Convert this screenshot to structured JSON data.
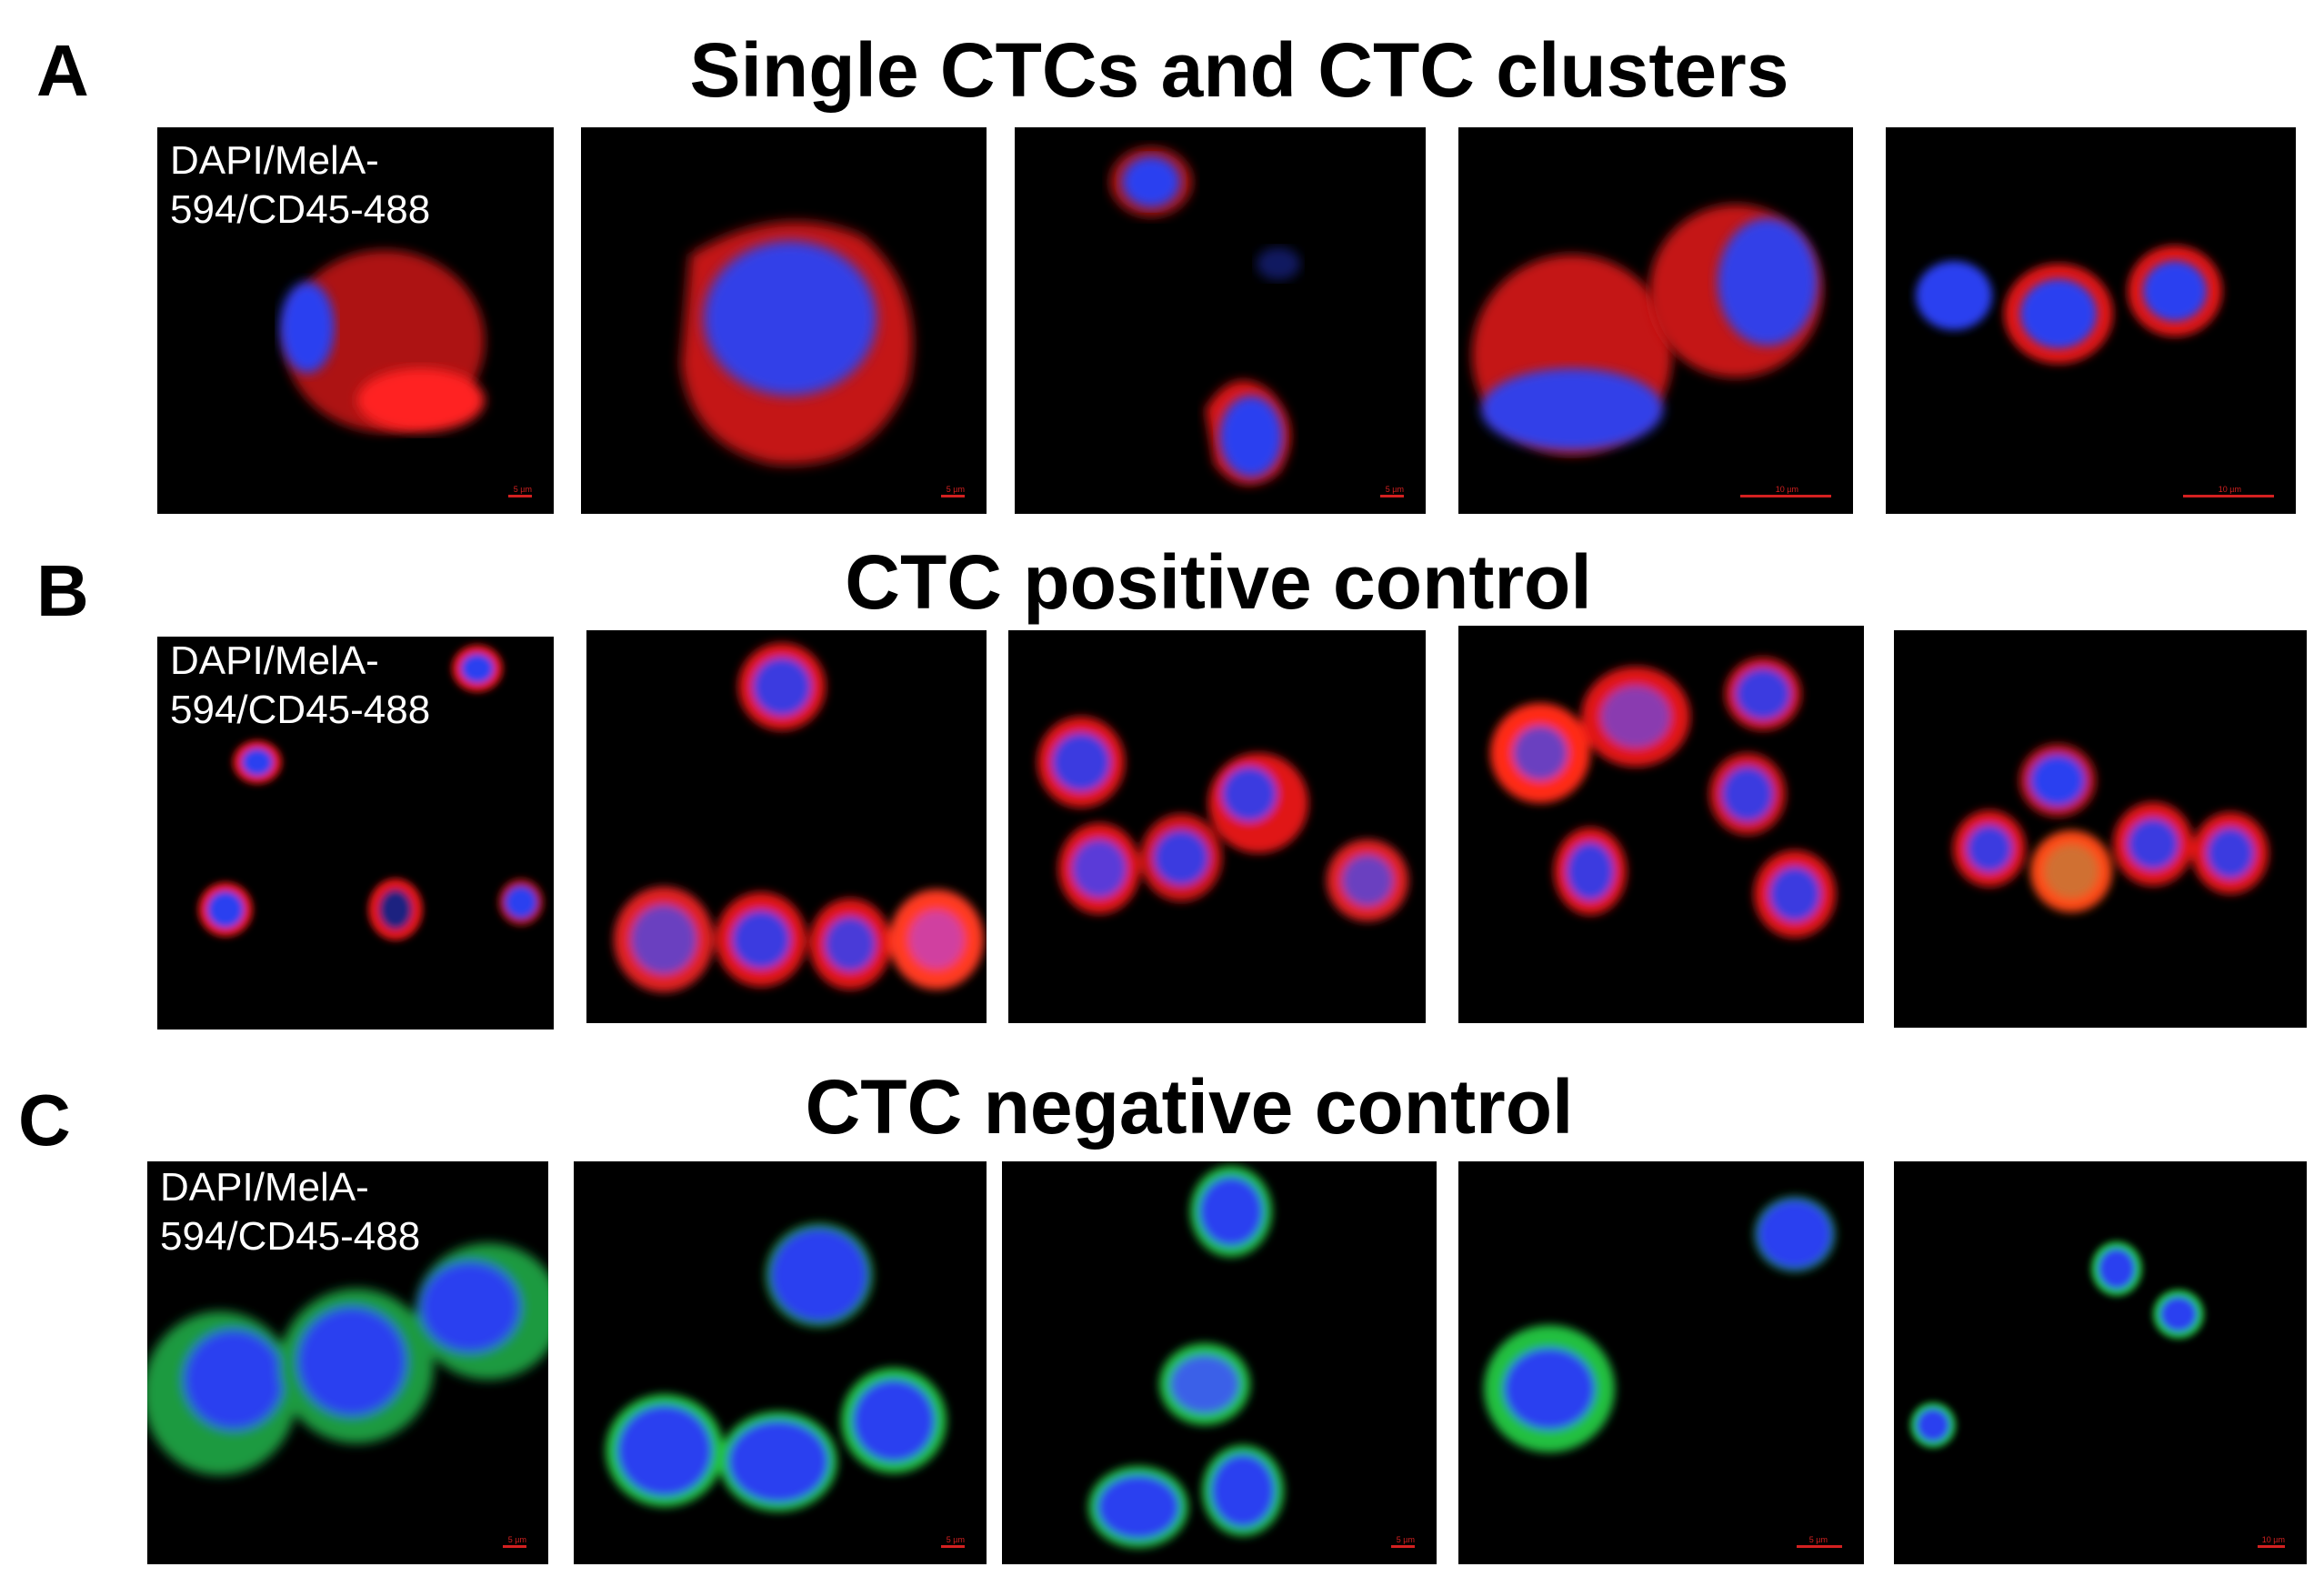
{
  "panels": [
    {
      "letter": "A",
      "title": "Single CTCs and CTC clusters",
      "stain_label": "DAPI/MelA-594/CD45-488",
      "stain_line1": "DAPI/MelA-",
      "stain_line2": "594/CD45-488"
    },
    {
      "letter": "B",
      "title": "CTC positive control",
      "stain_label": "DAPI/MelA-594/CD45-488",
      "stain_line1": "DAPI/MelA-",
      "stain_line2": "594/CD45-488"
    },
    {
      "letter": "C",
      "title": "CTC negative control",
      "stain_label": "DAPI/MelA-594/CD45-488",
      "stain_line1": "DAPI/MelA-",
      "stain_line2": "594/CD45-488"
    }
  ],
  "colors": {
    "background": "#ffffff",
    "tile": "#000000",
    "dapi": "#2b3ff0",
    "mela": "#e01818",
    "cd45": "#22c040",
    "scale_bar": "#d42020",
    "label": "#ffffff"
  },
  "scale_labels": {
    "a": [
      "5 µm",
      "5 µm",
      "5 µm",
      "10 µm",
      "10 µm"
    ],
    "c": [
      "5 µm",
      "5 µm",
      "5 µm",
      "5 µm",
      "10 µm"
    ]
  }
}
